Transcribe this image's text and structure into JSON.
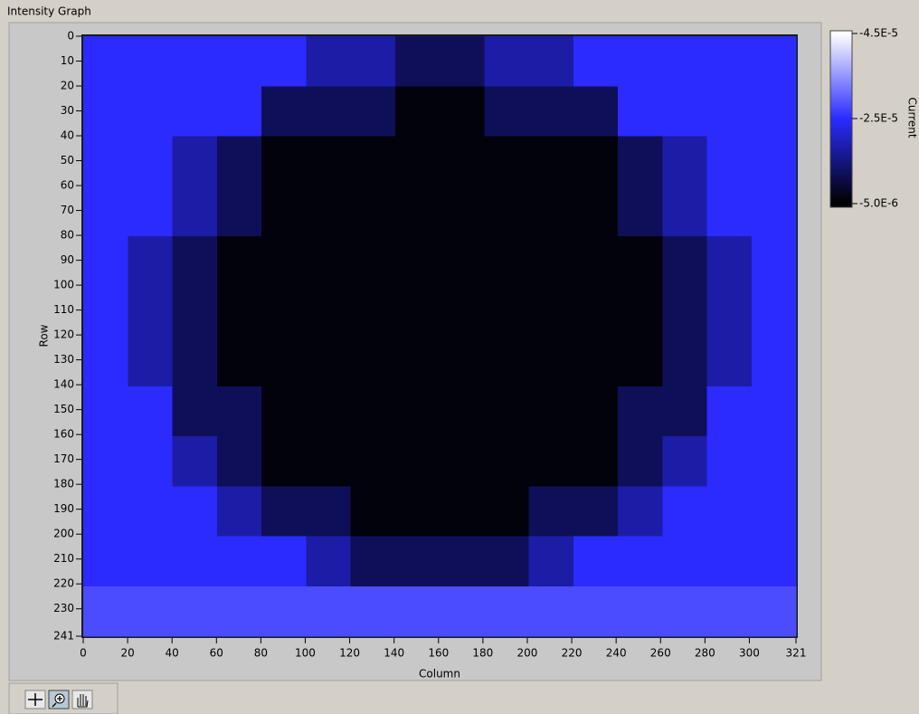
{
  "chart_data": {
    "type": "heatmap",
    "title": "Intensity Graph",
    "xlabel": "Column",
    "ylabel": "Row",
    "colorbar_label": "Current",
    "xlim": [
      0,
      321
    ],
    "ylim": [
      0,
      241
    ],
    "y_inverted": true,
    "xticks": [
      0,
      20,
      40,
      60,
      80,
      100,
      120,
      140,
      160,
      180,
      200,
      220,
      240,
      260,
      280,
      300,
      321
    ],
    "yticks": [
      0,
      10,
      20,
      30,
      40,
      50,
      60,
      70,
      80,
      90,
      100,
      110,
      120,
      130,
      140,
      150,
      160,
      170,
      180,
      190,
      200,
      210,
      220,
      230,
      241
    ],
    "zlim": [
      -5e-06,
      -4.5e-05
    ],
    "zticks": [
      {
        "value": -4.5e-05,
        "label": "-4.5E-5"
      },
      {
        "value": -2.5e-05,
        "label": "-2.5E-5"
      },
      {
        "value": -5e-06,
        "label": "-5.0E-6"
      }
    ],
    "colors": [
      "#ffffff",
      "#2b2bff",
      "#000000"
    ],
    "z": [
      [
        -2.5e-05,
        -2.5e-05,
        -2.5e-05,
        -2.5e-05,
        -2.5e-05,
        -1.8e-05,
        -1.8e-05,
        -1.2e-05,
        -1.2e-05,
        -1.8e-05,
        -1.8e-05,
        -2.5e-05,
        -2.5e-05,
        -2.5e-05,
        -2.5e-05,
        -2.5e-05
      ],
      [
        -2.5e-05,
        -2.5e-05,
        -2.5e-05,
        -2.5e-05,
        -1.2e-05,
        -1.2e-05,
        -1.2e-05,
        -6e-06,
        -6e-06,
        -1.2e-05,
        -1.2e-05,
        -1.2e-05,
        -2.5e-05,
        -2.5e-05,
        -2.5e-05,
        -2.5e-05
      ],
      [
        -2.5e-05,
        -2.5e-05,
        -1.8e-05,
        -1.2e-05,
        -6e-06,
        -6e-06,
        -6e-06,
        -6e-06,
        -6e-06,
        -6e-06,
        -6e-06,
        -6e-06,
        -1.2e-05,
        -1.8e-05,
        -2.5e-05,
        -2.5e-05
      ],
      [
        -2.5e-05,
        -2.5e-05,
        -1.8e-05,
        -1.2e-05,
        -6e-06,
        -6e-06,
        -6e-06,
        -6e-06,
        -6e-06,
        -6e-06,
        -6e-06,
        -6e-06,
        -1.2e-05,
        -1.8e-05,
        -2.5e-05,
        -2.5e-05
      ],
      [
        -2.5e-05,
        -1.8e-05,
        -1.2e-05,
        -6e-06,
        -6e-06,
        -6e-06,
        -6e-06,
        -6e-06,
        -6e-06,
        -6e-06,
        -6e-06,
        -6e-06,
        -6e-06,
        -1.2e-05,
        -1.8e-05,
        -2.5e-05
      ],
      [
        -2.5e-05,
        -1.8e-05,
        -1.2e-05,
        -6e-06,
        -6e-06,
        -6e-06,
        -6e-06,
        -6e-06,
        -6e-06,
        -6e-06,
        -6e-06,
        -6e-06,
        -6e-06,
        -1.2e-05,
        -1.8e-05,
        -2.5e-05
      ],
      [
        -2.5e-05,
        -1.8e-05,
        -1.2e-05,
        -6e-06,
        -6e-06,
        -6e-06,
        -6e-06,
        -6e-06,
        -6e-06,
        -6e-06,
        -6e-06,
        -6e-06,
        -6e-06,
        -1.2e-05,
        -1.8e-05,
        -2.5e-05
      ],
      [
        -2.5e-05,
        -2.5e-05,
        -1.2e-05,
        -1.2e-05,
        -6e-06,
        -6e-06,
        -6e-06,
        -6e-06,
        -6e-06,
        -6e-06,
        -6e-06,
        -6e-06,
        -1.2e-05,
        -1.2e-05,
        -2.5e-05,
        -2.5e-05
      ],
      [
        -2.5e-05,
        -2.5e-05,
        -1.8e-05,
        -1.2e-05,
        -6e-06,
        -6e-06,
        -6e-06,
        -6e-06,
        -6e-06,
        -6e-06,
        -6e-06,
        -6e-06,
        -1.2e-05,
        -1.8e-05,
        -2.5e-05,
        -2.5e-05
      ],
      [
        -2.5e-05,
        -2.5e-05,
        -2.5e-05,
        -1.8e-05,
        -1.2e-05,
        -1.2e-05,
        -6e-06,
        -6e-06,
        -6e-06,
        -6e-06,
        -1.2e-05,
        -1.2e-05,
        -1.8e-05,
        -2.5e-05,
        -2.5e-05,
        -2.5e-05
      ],
      [
        -2.5e-05,
        -2.5e-05,
        -2.5e-05,
        -2.5e-05,
        -2.5e-05,
        -1.8e-05,
        -1.2e-05,
        -1.2e-05,
        -1.2e-05,
        -1.2e-05,
        -1.8e-05,
        -2.5e-05,
        -2.5e-05,
        -2.5e-05,
        -2.5e-05,
        -2.5e-05
      ],
      [
        -2.8e-05,
        -2.8e-05,
        -2.8e-05,
        -2.8e-05,
        -2.8e-05,
        -2.8e-05,
        -2.8e-05,
        -2.8e-05,
        -2.8e-05,
        -2.8e-05,
        -2.8e-05,
        -2.8e-05,
        -2.8e-05,
        -2.8e-05,
        -2.8e-05,
        -2.8e-05
      ]
    ]
  }
}
